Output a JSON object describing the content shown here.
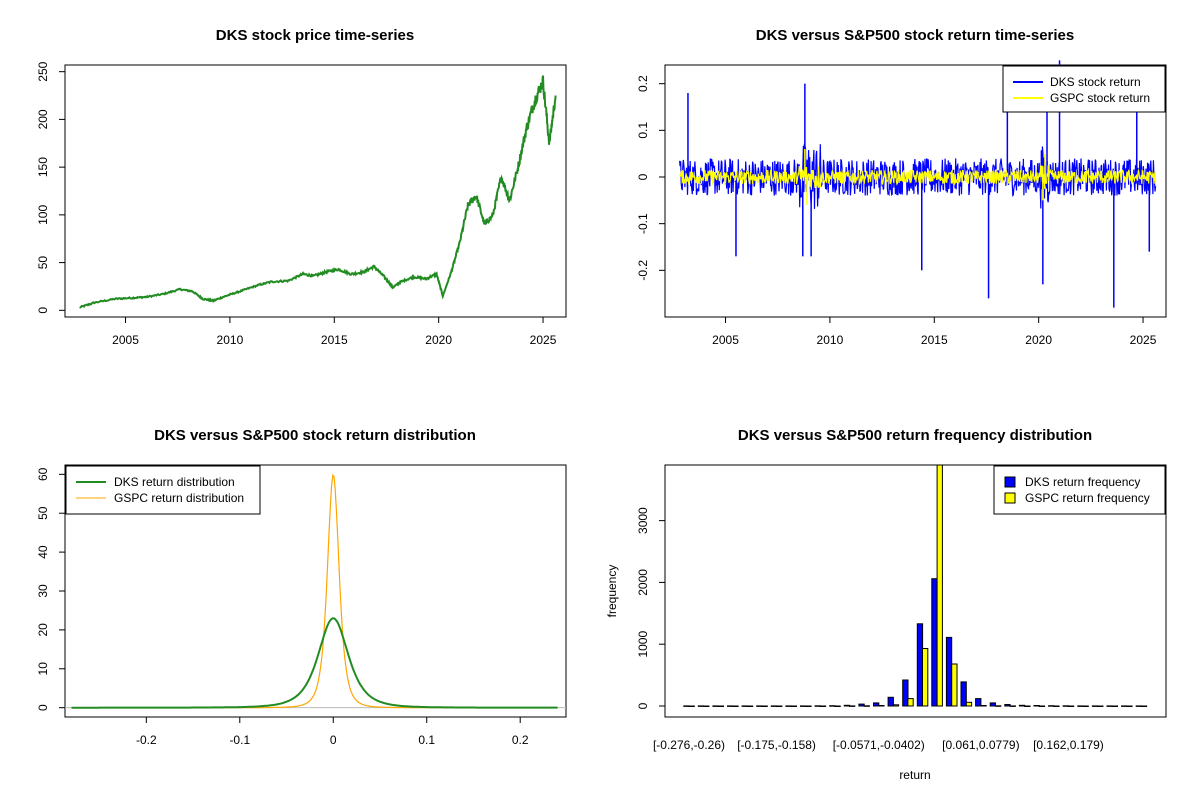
{
  "chart_data": [
    {
      "type": "line",
      "title": "DKS stock price time-series",
      "xlabel": "",
      "ylabel": "",
      "xlim": [
        2002.1,
        2026.1
      ],
      "ylim": [
        -7,
        257
      ],
      "x_ticks": [
        2005,
        2010,
        2015,
        2020,
        2025
      ],
      "y_ticks": [
        0,
        50,
        100,
        150,
        200,
        250
      ],
      "color": "#228B22",
      "series": [
        {
          "x": [
            2002.8,
            2003.5,
            2004.5,
            2005.3,
            2006.0,
            2006.8,
            2007.6,
            2008.2,
            2008.7,
            2009.2,
            2009.8,
            2010.5,
            2011.3,
            2012.0,
            2012.8,
            2013.5,
            2014.0,
            2014.6,
            2015.2,
            2015.8,
            2016.4,
            2016.9,
            2017.4,
            2017.8,
            2018.2,
            2018.8,
            2019.4,
            2019.9,
            2020.2,
            2020.6,
            2021.0,
            2021.4,
            2021.8,
            2022.2,
            2022.6,
            2023.0,
            2023.4,
            2023.8,
            2024.2,
            2024.6,
            2025.0,
            2025.3,
            2025.6
          ],
          "y": [
            3,
            8,
            12,
            13,
            14,
            17,
            22,
            20,
            12,
            10,
            15,
            20,
            26,
            30,
            31,
            38,
            36,
            40,
            43,
            38,
            40,
            46,
            35,
            24,
            30,
            35,
            33,
            38,
            15,
            40,
            70,
            110,
            120,
            90,
            100,
            140,
            115,
            150,
            190,
            220,
            240,
            175,
            225
          ]
        }
      ]
    },
    {
      "type": "line",
      "title": "DKS versus S&P500 stock return time-series",
      "xlabel": "",
      "ylabel": "",
      "xlim": [
        2002.1,
        2026.1
      ],
      "ylim": [
        -0.3,
        0.24
      ],
      "x_ticks": [
        2005,
        2010,
        2015,
        2020,
        2025
      ],
      "y_ticks": [
        -0.2,
        -0.1,
        0.0,
        0.1,
        0.2
      ],
      "legend_position": "top-right",
      "series": [
        {
          "name": "DKS stock return",
          "color": "#0000FF",
          "band": 0.04,
          "spikes": [
            [
              2003.2,
              0.18
            ],
            [
              2005.5,
              -0.17
            ],
            [
              2008.7,
              -0.17
            ],
            [
              2008.8,
              0.2
            ],
            [
              2009.1,
              -0.17
            ],
            [
              2014.4,
              -0.2
            ],
            [
              2017.6,
              -0.26
            ],
            [
              2018.5,
              0.21
            ],
            [
              2020.2,
              -0.23
            ],
            [
              2020.4,
              0.2
            ],
            [
              2021.0,
              0.25
            ],
            [
              2023.6,
              -0.28
            ],
            [
              2024.7,
              0.2
            ],
            [
              2025.3,
              -0.16
            ]
          ]
        },
        {
          "name": "GSPC stock return",
          "color": "#FFFF00",
          "band": 0.015,
          "spikes": [
            [
              2008.8,
              0.06
            ],
            [
              2008.9,
              -0.06
            ],
            [
              2020.2,
              -0.05
            ],
            [
              2020.3,
              0.05
            ]
          ]
        }
      ]
    },
    {
      "type": "line",
      "title": "DKS versus S&P500 stock return distribution",
      "xlabel": "",
      "ylabel": "",
      "xlim": [
        -0.287,
        0.249
      ],
      "ylim": [
        -2.4,
        62.4
      ],
      "x_ticks": [
        -0.2,
        -0.1,
        0.0,
        0.1,
        0.2
      ],
      "y_ticks": [
        0,
        10,
        20,
        30,
        40,
        50,
        60
      ],
      "legend_position": "top-left",
      "x_range": [
        -0.28,
        0.24
      ],
      "series": [
        {
          "name": "DKS return distribution",
          "color": "#228B22",
          "peak": 23,
          "sd": 0.017
        },
        {
          "name": "GSPC return distribution",
          "color": "#FFA500",
          "peak": 60,
          "sd": 0.0066
        }
      ]
    },
    {
      "type": "bar",
      "title": "DKS versus S&P500 return frequency distribution",
      "xlabel": "return",
      "ylabel": "frequency",
      "ylim": [
        0,
        3900
      ],
      "y_ticks": [
        0,
        1000,
        2000,
        3000
      ],
      "legend_position": "top-right",
      "x_tick_labels": [
        "[-0.276,-0.26)",
        "[-0.175,-0.158)",
        "[-0.0571,-0.0402)",
        "[0.061,0.0779)",
        "[0.162,0.179)"
      ],
      "x_tick_label_bins": [
        0,
        6,
        13,
        20,
        26
      ],
      "series": [
        {
          "name": "DKS return frequency",
          "color": "#0000FF",
          "values": [
            1,
            1,
            1,
            1,
            1,
            1,
            1,
            1,
            1,
            3,
            5,
            12,
            30,
            50,
            140,
            420,
            1330,
            2060,
            1110,
            390,
            120,
            50,
            25,
            12,
            8,
            5,
            3,
            2,
            1,
            1,
            1,
            1
          ]
        },
        {
          "name": "GSPC return frequency",
          "color": "#FFFF00",
          "values": [
            0,
            0,
            0,
            0,
            0,
            0,
            0,
            0,
            0,
            0,
            0,
            1,
            3,
            8,
            20,
            120,
            930,
            3900,
            680,
            60,
            8,
            3,
            1,
            0,
            0,
            0,
            0,
            0,
            0,
            0,
            0,
            0
          ]
        }
      ]
    }
  ]
}
